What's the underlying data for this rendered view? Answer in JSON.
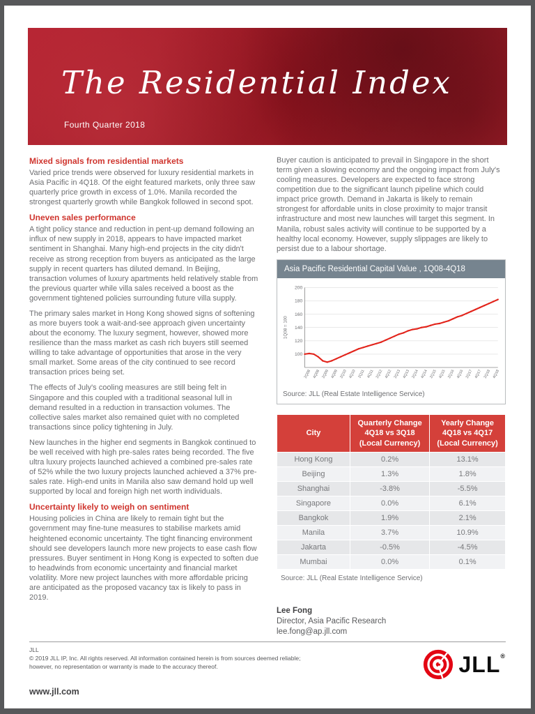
{
  "banner": {
    "title": "The Residential Index",
    "subtitle": "Fourth Quarter 2018"
  },
  "left_column": {
    "sections": [
      {
        "heading": "Mixed signals from residential markets",
        "paragraphs": [
          "Varied price trends were observed for luxury residential markets in Asia Pacific in 4Q18. Of the eight featured markets, only three saw quarterly price growth in excess of 1.0%. Manila recorded the strongest quarterly growth while Bangkok followed in second spot."
        ]
      },
      {
        "heading": "Uneven sales performance",
        "paragraphs": [
          "A tight policy stance and reduction in pent-up demand following an influx of new supply in 2018, appears to have impacted market sentiment in Shanghai. Many high-end projects in the city didn't receive as strong reception from buyers as anticipated as the large supply in recent quarters has diluted demand. In Beijing, transaction volumes of luxury apartments held relatively stable from the previous quarter while villa sales received a boost as the government tightened policies surrounding future villa supply.",
          "The primary sales market in Hong Kong showed signs of softening as more buyers took a wait-and-see approach given uncertainty about the economy. The luxury segment, however, showed more resilience than the mass market as cash rich buyers still seemed willing to take advantage of opportunities that arose in the very small market. Some areas of the city continued to see record transaction prices being set.",
          "The effects of July's cooling measures are still being felt in Singapore and this coupled with a traditional seasonal lull in demand resulted in a reduction in transaction volumes. The collective sales market also remained quiet with no completed transactions since policy tightening in July.",
          "New launches in the higher end segments in Bangkok continued to be well received with high pre-sales rates being recorded. The five ultra luxury projects launched achieved a combined pre-sales rate of 52% while the two luxury projects launched achieved a 37% pre-sales rate. High-end units in Manila also saw demand hold up well supported by local and foreign high net worth individuals."
        ]
      },
      {
        "heading": "Uncertainty likely to weigh on sentiment",
        "paragraphs": [
          "Housing policies in China are likely to remain tight but the government may fine-tune measures to stabilise markets amid heightened economic uncertainty. The tight financing environment should see developers launch more new projects to ease cash flow pressures. Buyer sentiment in Hong Kong is expected to soften due to headwinds from economic uncertainty and financial market volatility. More new project launches with more affordable pricing are anticipated as the proposed vacancy tax is likely to pass in 2019."
        ]
      }
    ]
  },
  "right_column": {
    "paragraph": "Buyer caution is anticipated to prevail in Singapore in the short term given a slowing economy and the ongoing impact from July's cooling measures. Developers are expected to face strong competition due to the significant launch pipeline which could impact price growth. Demand in Jakarta is likely to remain strongest for affordable units in close proximity to major transit infrastructure and most new launches will target this segment. In Manila, robust sales activity will continue to be supported by a healthy local economy. However, supply slippages are likely to persist due to a labour shortage."
  },
  "chart_data": {
    "type": "line",
    "title": "Asia Pacific Residential Capital Value , 1Q08-4Q18",
    "ylabel": "1Q08 = 100",
    "ylim": [
      80,
      200
    ],
    "yticks": [
      100,
      120,
      140,
      160,
      180,
      200
    ],
    "x": [
      "1Q08",
      "2Q08",
      "3Q08",
      "4Q08",
      "1Q09",
      "2Q09",
      "3Q09",
      "4Q09",
      "1Q10",
      "2Q10",
      "3Q10",
      "4Q10",
      "1Q11",
      "2Q11",
      "3Q11",
      "4Q11",
      "1Q12",
      "2Q12",
      "3Q12",
      "4Q12",
      "1Q13",
      "2Q13",
      "3Q13",
      "4Q13",
      "1Q14",
      "2Q14",
      "3Q14",
      "4Q14",
      "1Q15",
      "2Q15",
      "3Q15",
      "4Q15",
      "1Q16",
      "2Q16",
      "3Q16",
      "4Q16",
      "1Q17",
      "2Q17",
      "3Q17",
      "4Q17",
      "1Q18",
      "2Q18",
      "3Q18",
      "4Q18"
    ],
    "series": [
      {
        "name": "Asia Pacific Residential Capital Value",
        "values": [
          100,
          101,
          100,
          96,
          90,
          88,
          90,
          93,
          96,
          99,
          102,
          105,
          108,
          110,
          112,
          114,
          116,
          118,
          121,
          124,
          127,
          130,
          132,
          135,
          137,
          138,
          140,
          141,
          143,
          145,
          146,
          148,
          150,
          153,
          156,
          158,
          161,
          164,
          167,
          170,
          173,
          176,
          179,
          182
        ]
      }
    ],
    "line_color": "#e2231a",
    "grid": true,
    "legend": "none",
    "source": "Source: JLL (Real Estate Intelligence Service)"
  },
  "table": {
    "headers": [
      [
        "City"
      ],
      [
        "Quarterly Change",
        "4Q18 vs 3Q18",
        "(Local Currency)"
      ],
      [
        "Yearly Change",
        "4Q18 vs 4Q17",
        "(Local Currency)"
      ]
    ],
    "rows": [
      [
        "Hong Kong",
        "0.2%",
        "13.1%"
      ],
      [
        "Beijing",
        "1.3%",
        "1.8%"
      ],
      [
        "Shanghai",
        "-3.8%",
        "-5.5%"
      ],
      [
        "Singapore",
        "0.0%",
        "6.1%"
      ],
      [
        "Bangkok",
        "1.9%",
        "2.1%"
      ],
      [
        "Manila",
        "3.7%",
        "10.9%"
      ],
      [
        "Jakarta",
        "-0.5%",
        "-4.5%"
      ],
      [
        "Mumbai",
        "0.0%",
        "0.1%"
      ]
    ],
    "source": "Source: JLL (Real Estate Intelligence Service)"
  },
  "contact": {
    "name": "Lee Fong",
    "title": "Director, Asia Pacific Research",
    "email": "lee.fong@ap.jll.com"
  },
  "footer": {
    "company": "JLL",
    "copyright_line1": "© 2019 JLL IP, Inc. All rights reserved. All information contained herein is from sources deemed reliable;",
    "copyright_line2": "however, no representation or warranty is made to the accuracy thereof.",
    "website": "www.jll.com",
    "logo_text": "JLL",
    "registered": "®",
    "brand_red": "#e30613"
  }
}
